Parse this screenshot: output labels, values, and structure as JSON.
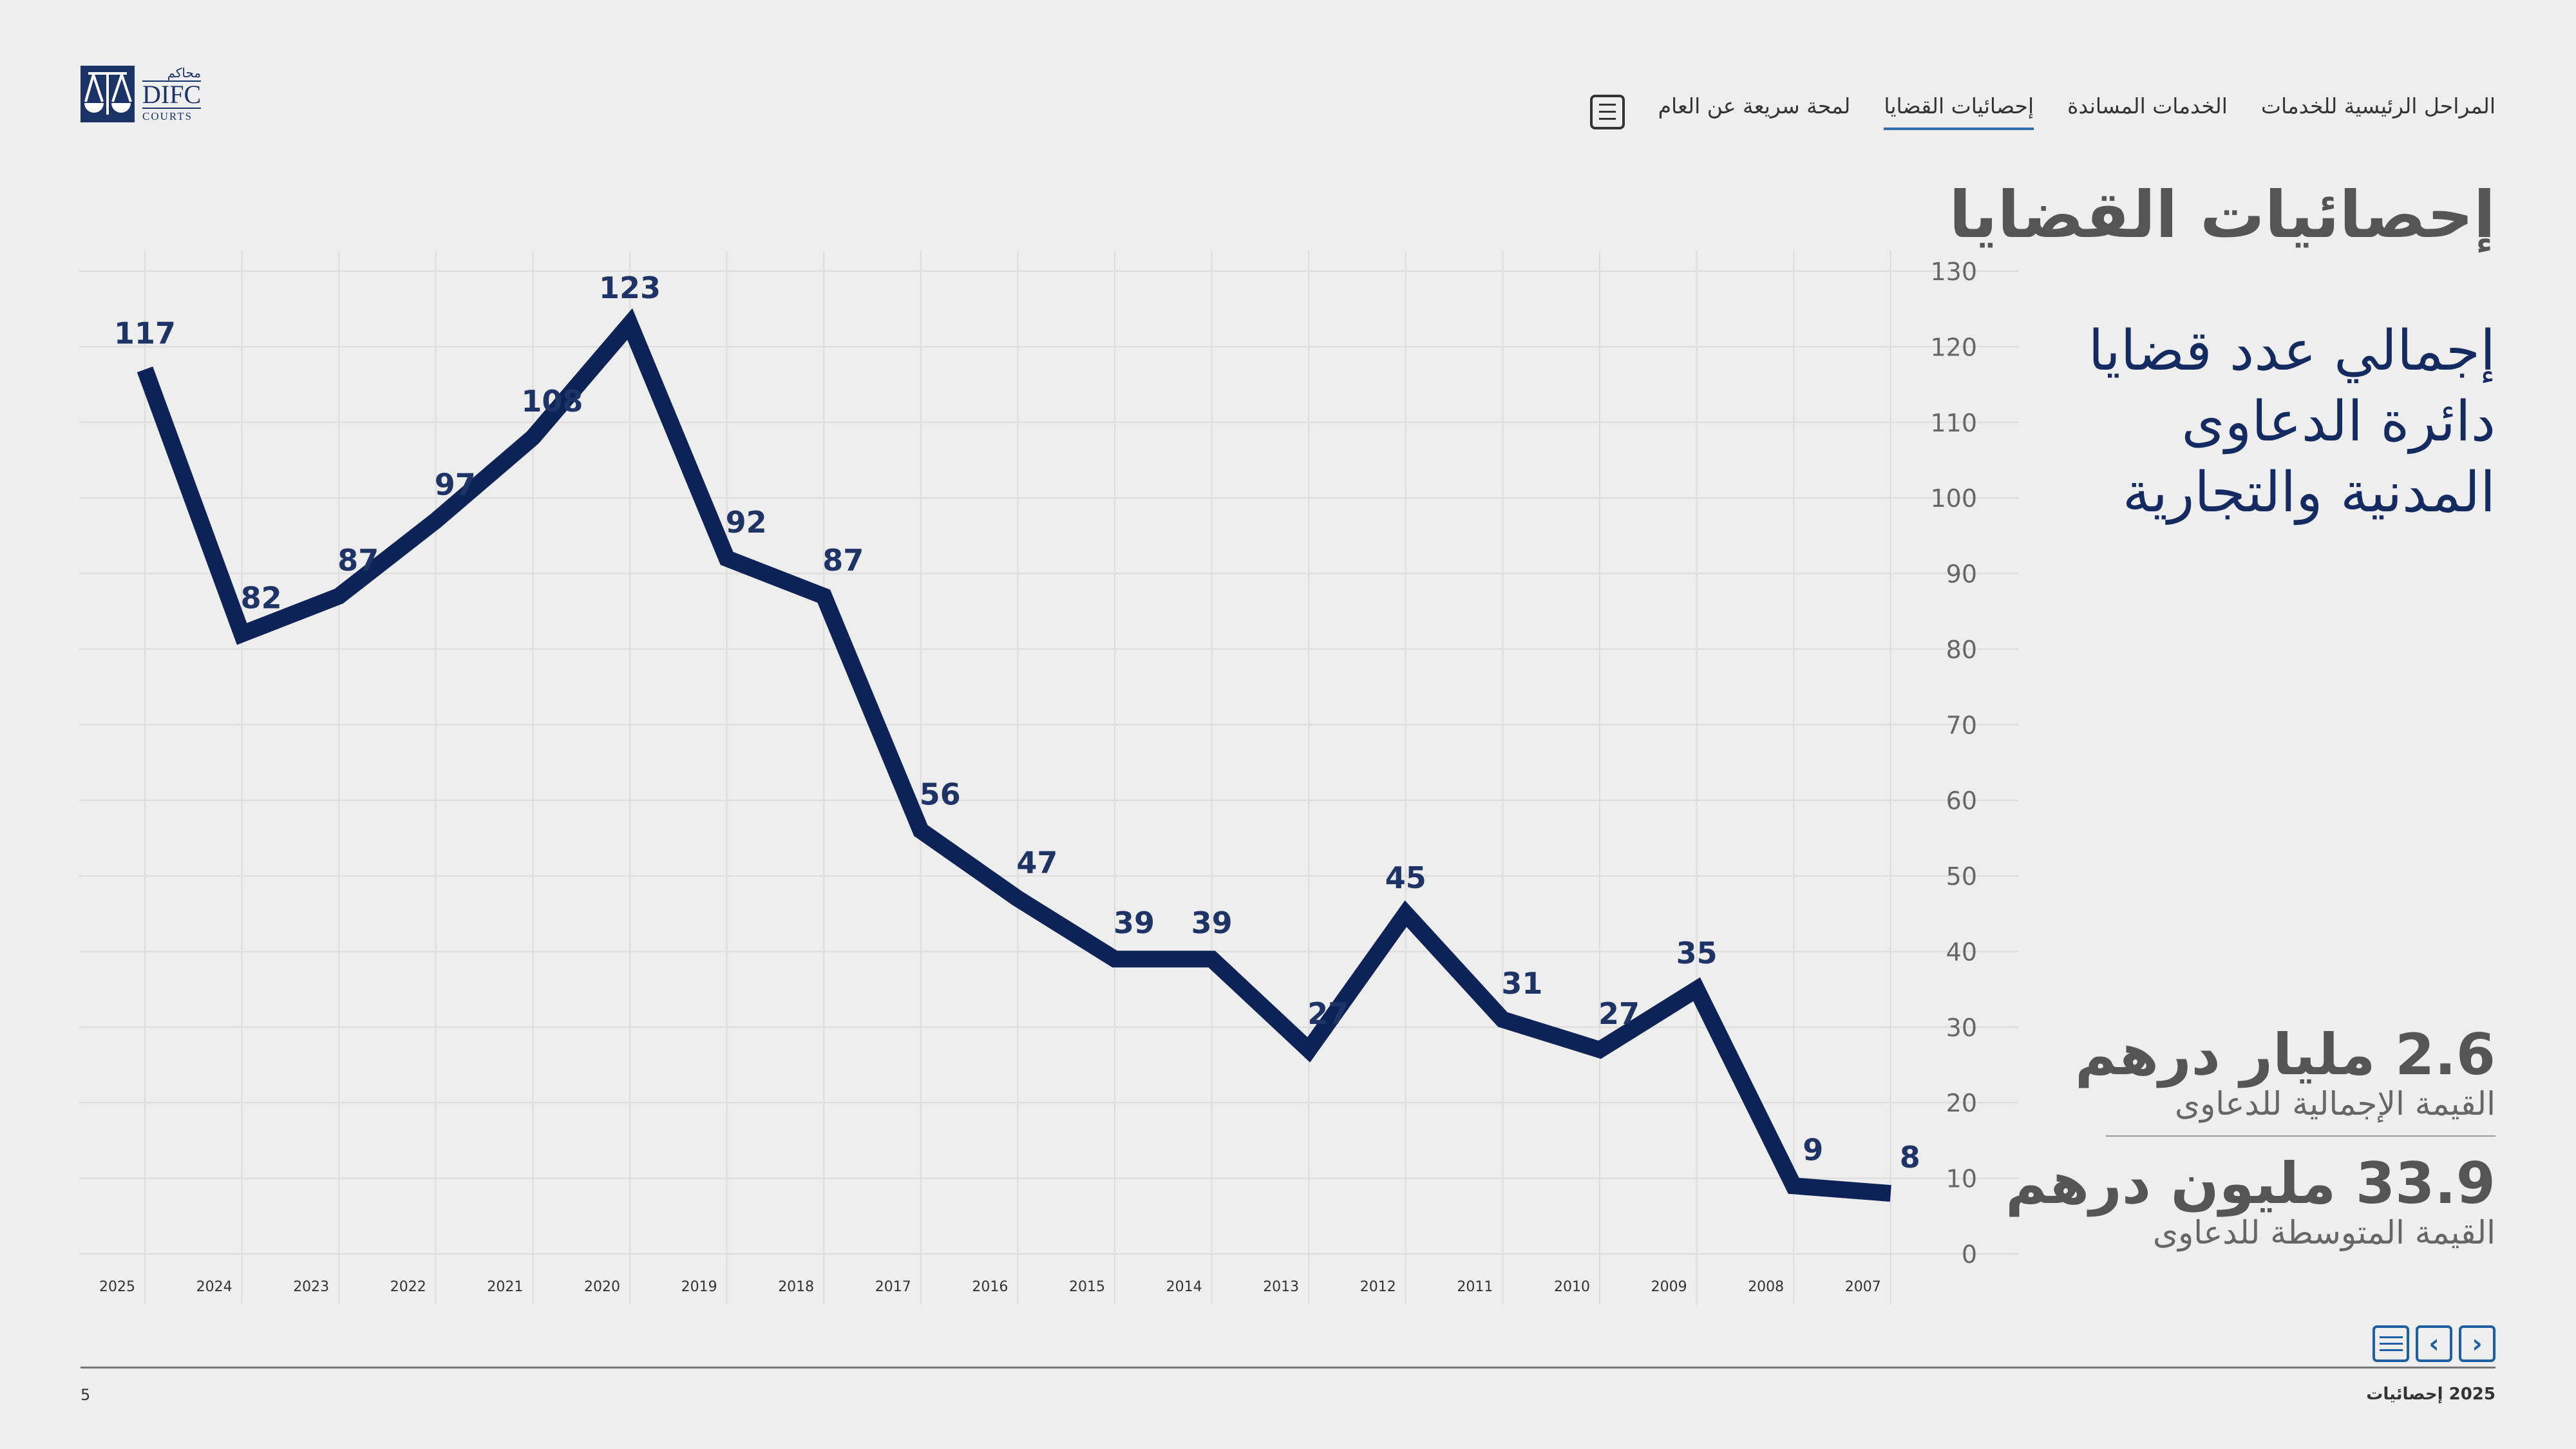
{
  "logo": {
    "arabic": "محاكم",
    "name": "DIFC",
    "sub": "COURTS"
  },
  "nav": {
    "items": [
      {
        "label": "لمحة سريعة عن العام",
        "active": false
      },
      {
        "label": "إحصائيات القضايا",
        "active": true
      },
      {
        "label": "الخدمات المساندة",
        "active": false
      },
      {
        "label": "المراحل الرئيسية للخدمات",
        "active": false
      }
    ],
    "menu_icon": "menu-list-icon"
  },
  "title": "إحصائيات القضايا",
  "subtitle": "إجمالي عدد قضايا دائرة الدعاوى المدنية والتجارية",
  "stats": [
    {
      "value": "2.6 مليار درهم",
      "label": "القيمة الإجمالية للدعاوى"
    },
    {
      "value": "33.9 مليون درهم",
      "label": "القيمة المتوسطة للدعاوى"
    }
  ],
  "controls": {
    "menu": "menu-list-icon",
    "prev": "‹",
    "next": "›"
  },
  "footer": {
    "page": "5",
    "label": "2025 إحصائيات"
  },
  "colors": {
    "line": "#0d2357",
    "accent": "#1d5fa0",
    "title": "#555555",
    "subtitle": "#142b62"
  },
  "chart_data": {
    "type": "line",
    "x": [
      "2025",
      "2024",
      "2023",
      "2022",
      "2021",
      "2020",
      "2019",
      "2018",
      "2017",
      "2016",
      "2015",
      "2014",
      "2013",
      "2012",
      "2011",
      "2010",
      "2009",
      "2008",
      "2007"
    ],
    "values": [
      117,
      82,
      87,
      97,
      108,
      123,
      92,
      87,
      56,
      47,
      39,
      39,
      27,
      45,
      31,
      27,
      35,
      9,
      8
    ],
    "ylim": [
      0,
      130
    ],
    "yticks": [
      0,
      10,
      20,
      30,
      40,
      50,
      60,
      70,
      80,
      90,
      100,
      110,
      120,
      130
    ],
    "y_axis_side": "right",
    "grid": true,
    "data_labels": true
  }
}
